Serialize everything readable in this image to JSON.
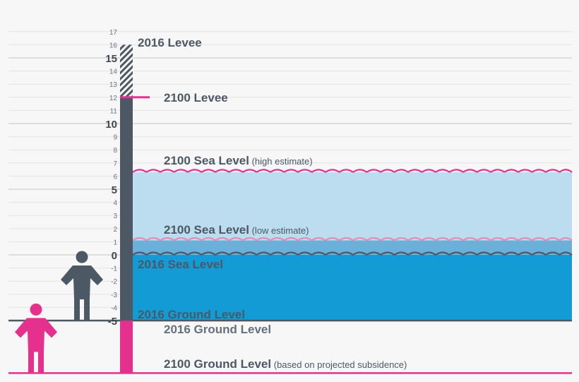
{
  "chart_data": {
    "type": "bar",
    "y_axis": {
      "ticks": [
        "17",
        "16",
        "15",
        "14",
        "13",
        "12",
        "11",
        "10",
        "9",
        "8",
        "7",
        "6",
        "5",
        "4",
        "3",
        "2",
        "1",
        "0",
        "-1",
        "-2",
        "-3",
        "-4",
        "-5"
      ],
      "major_ticks": [
        "15",
        "10",
        "5",
        "0",
        "-5"
      ],
      "ylim": [
        -9,
        17
      ],
      "grid": true
    },
    "levels": [
      {
        "name": "2016 Levee",
        "value": 16
      },
      {
        "name": "2100 Levee",
        "value": 12
      },
      {
        "name": "2100 Sea Level",
        "note": "(high estimate)",
        "value": 6.3
      },
      {
        "name": "2100 Sea Level",
        "note": "(low estimate)",
        "value": 1.1
      },
      {
        "name": "2016 Sea Level",
        "value": 0
      },
      {
        "name": "2016 Ground Level",
        "value": -5
      },
      {
        "name": "2016 Ground Level",
        "value": -5,
        "style": "ghost"
      },
      {
        "name": "2100 Ground Level",
        "note": "(based on projected subsidence)",
        "value": -9
      }
    ],
    "colors": {
      "background": "#f7f7f7",
      "gridline": "#d9d9d9",
      "levee": "#4c5864",
      "levee_2100": "#e5318d",
      "ground_2100": "#e5318d",
      "sea_2016": "#139bd6",
      "sea_low": "#6ab0d9",
      "sea_high": "#bcdcef",
      "wave_high": "#e5318d",
      "wave_low": "#e88ab5",
      "wave_2016": "#4c5864",
      "person_2016": "#4c5864",
      "person_2100": "#e5318d"
    },
    "icons": [
      "person-2016-icon",
      "person-2100-icon"
    ]
  }
}
